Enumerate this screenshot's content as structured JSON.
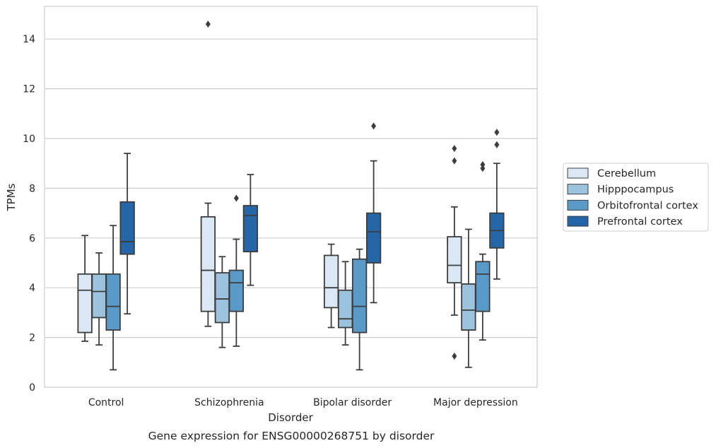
{
  "chart_data": {
    "type": "box",
    "caption": "Gene expression for ENSG00000268751 by disorder",
    "xlabel": "Disorder",
    "ylabel": "TPMs",
    "ylim": [
      0,
      15.3
    ],
    "yticks": [
      0,
      2,
      4,
      6,
      8,
      10,
      12,
      14
    ],
    "grid": true,
    "legend_position": "right",
    "categories": [
      "Control",
      "Schizophrenia",
      "Bipolar disorder",
      "Major depression"
    ],
    "series": [
      {
        "name": "Cerebellum",
        "color": "#dae8f5",
        "boxes": [
          {
            "whisker_low": 1.85,
            "q1": 2.2,
            "median": 3.9,
            "q3": 4.55,
            "whisker_high": 6.1,
            "outliers": []
          },
          {
            "whisker_low": 2.45,
            "q1": 3.05,
            "median": 4.7,
            "q3": 6.85,
            "whisker_high": 7.4,
            "outliers": [
              14.6
            ]
          },
          {
            "whisker_low": 2.4,
            "q1": 3.2,
            "median": 4.0,
            "q3": 5.3,
            "whisker_high": 5.75,
            "outliers": []
          },
          {
            "whisker_low": 2.9,
            "q1": 4.2,
            "median": 4.9,
            "q3": 6.05,
            "whisker_high": 7.25,
            "outliers": [
              1.25,
              9.1,
              9.6
            ]
          }
        ]
      },
      {
        "name": "Hipppocampus",
        "color": "#9bc3de",
        "boxes": [
          {
            "whisker_low": 1.7,
            "q1": 2.8,
            "median": 3.85,
            "q3": 4.55,
            "whisker_high": 5.4,
            "outliers": []
          },
          {
            "whisker_low": 1.6,
            "q1": 2.6,
            "median": 3.55,
            "q3": 4.6,
            "whisker_high": 5.25,
            "outliers": []
          },
          {
            "whisker_low": 1.7,
            "q1": 2.4,
            "median": 2.75,
            "q3": 3.9,
            "whisker_high": 5.05,
            "outliers": []
          },
          {
            "whisker_low": 0.8,
            "q1": 2.3,
            "median": 3.1,
            "q3": 4.15,
            "whisker_high": 6.35,
            "outliers": []
          }
        ]
      },
      {
        "name": "Orbitofrontal cortex",
        "color": "#5a9ac8",
        "boxes": [
          {
            "whisker_low": 0.7,
            "q1": 2.3,
            "median": 3.25,
            "q3": 4.55,
            "whisker_high": 6.5,
            "outliers": []
          },
          {
            "whisker_low": 1.65,
            "q1": 3.05,
            "median": 4.2,
            "q3": 4.7,
            "whisker_high": 5.95,
            "outliers": [
              7.6
            ]
          },
          {
            "whisker_low": 0.7,
            "q1": 2.2,
            "median": 3.25,
            "q3": 5.15,
            "whisker_high": 5.55,
            "outliers": []
          },
          {
            "whisker_low": 1.9,
            "q1": 3.05,
            "median": 4.55,
            "q3": 5.05,
            "whisker_high": 5.35,
            "outliers": [
              8.8,
              8.95
            ]
          }
        ]
      },
      {
        "name": "Prefrontal cortex",
        "color": "#2466a7",
        "boxes": [
          {
            "whisker_low": 2.95,
            "q1": 5.35,
            "median": 5.85,
            "q3": 7.45,
            "whisker_high": 9.4,
            "outliers": []
          },
          {
            "whisker_low": 4.1,
            "q1": 5.45,
            "median": 6.9,
            "q3": 7.3,
            "whisker_high": 8.55,
            "outliers": []
          },
          {
            "whisker_low": 3.4,
            "q1": 5.0,
            "median": 6.25,
            "q3": 7.0,
            "whisker_high": 9.1,
            "outliers": [
              10.5
            ]
          },
          {
            "whisker_low": 4.35,
            "q1": 5.6,
            "median": 6.3,
            "q3": 7.0,
            "whisker_high": 9.0,
            "outliers": [
              9.75,
              10.25
            ]
          }
        ]
      }
    ]
  }
}
